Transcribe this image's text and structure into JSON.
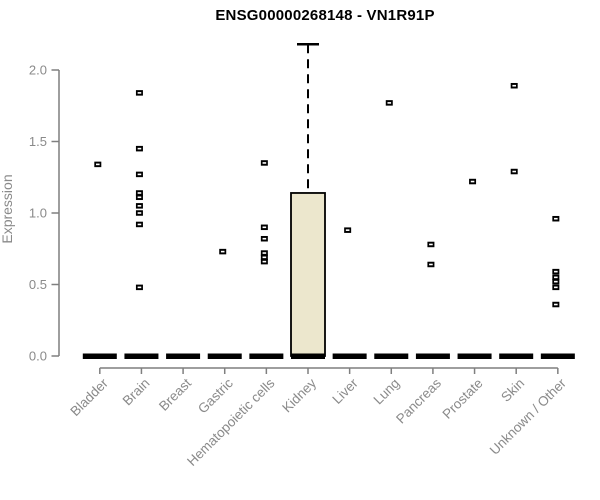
{
  "chart_data": {
    "type": "boxplot",
    "title": "ENSG00000268148 - VN1R91P",
    "ylabel": "Expression",
    "xlabel": "",
    "ylim": [
      0,
      2.2
    ],
    "yticks": [
      0.0,
      0.5,
      1.0,
      1.5,
      2.0
    ],
    "grid": false,
    "legend": "none",
    "categories": [
      "Bladder",
      "Brain",
      "Breast",
      "Gastric",
      "Hematopoietic cells",
      "Kidney",
      "Liver",
      "Lung",
      "Pancreas",
      "Prostate",
      "Skin",
      "Unknown / Other"
    ],
    "series": [
      {
        "name": "Bladder",
        "box": {
          "q1": 0,
          "median": 0,
          "q3": 0,
          "whisker_low": 0,
          "whisker_high": 0
        },
        "points": [
          1.34
        ]
      },
      {
        "name": "Brain",
        "box": {
          "q1": 0,
          "median": 0,
          "q3": 0,
          "whisker_low": 0,
          "whisker_high": 0
        },
        "points": [
          1.84,
          1.45,
          1.27,
          1.14,
          1.11,
          1.05,
          1.0,
          0.92,
          0.48
        ]
      },
      {
        "name": "Breast",
        "box": {
          "q1": 0,
          "median": 0,
          "q3": 0,
          "whisker_low": 0,
          "whisker_high": 0
        },
        "points": []
      },
      {
        "name": "Gastric",
        "box": {
          "q1": 0,
          "median": 0,
          "q3": 0,
          "whisker_low": 0,
          "whisker_high": 0
        },
        "points": [
          0.73
        ]
      },
      {
        "name": "Hematopoietic cells",
        "box": {
          "q1": 0,
          "median": 0,
          "q3": 0,
          "whisker_low": 0,
          "whisker_high": 0
        },
        "points": [
          1.35,
          0.9,
          0.82,
          0.72,
          0.69,
          0.66
        ]
      },
      {
        "name": "Kidney",
        "box": {
          "q1": 0,
          "median": 0,
          "q3": 1.14,
          "whisker_low": 0,
          "whisker_high": 2.18
        },
        "points": []
      },
      {
        "name": "Liver",
        "box": {
          "q1": 0,
          "median": 0,
          "q3": 0,
          "whisker_low": 0,
          "whisker_high": 0
        },
        "points": [
          0.88
        ]
      },
      {
        "name": "Lung",
        "box": {
          "q1": 0,
          "median": 0,
          "q3": 0,
          "whisker_low": 0,
          "whisker_high": 0
        },
        "points": [
          1.77
        ]
      },
      {
        "name": "Pancreas",
        "box": {
          "q1": 0,
          "median": 0,
          "q3": 0,
          "whisker_low": 0,
          "whisker_high": 0
        },
        "points": [
          0.78,
          0.64
        ]
      },
      {
        "name": "Prostate",
        "box": {
          "q1": 0,
          "median": 0,
          "q3": 0,
          "whisker_low": 0,
          "whisker_high": 0
        },
        "points": [
          1.22
        ]
      },
      {
        "name": "Skin",
        "box": {
          "q1": 0,
          "median": 0,
          "q3": 0,
          "whisker_low": 0,
          "whisker_high": 0
        },
        "points": [
          1.89,
          1.29
        ]
      },
      {
        "name": "Unknown / Other",
        "box": {
          "q1": 0,
          "median": 0,
          "q3": 0,
          "whisker_low": 0,
          "whisker_high": 0
        },
        "points": [
          0.96,
          0.59,
          0.55,
          0.52,
          0.48,
          0.36
        ]
      }
    ],
    "colors": {
      "box_fill": "#ece7cd",
      "box_stroke": "#000000",
      "point_color": "#000000",
      "axis_color": "#7f7f7f",
      "label_color": "#8a8a8a",
      "title_color": "#000000"
    }
  }
}
